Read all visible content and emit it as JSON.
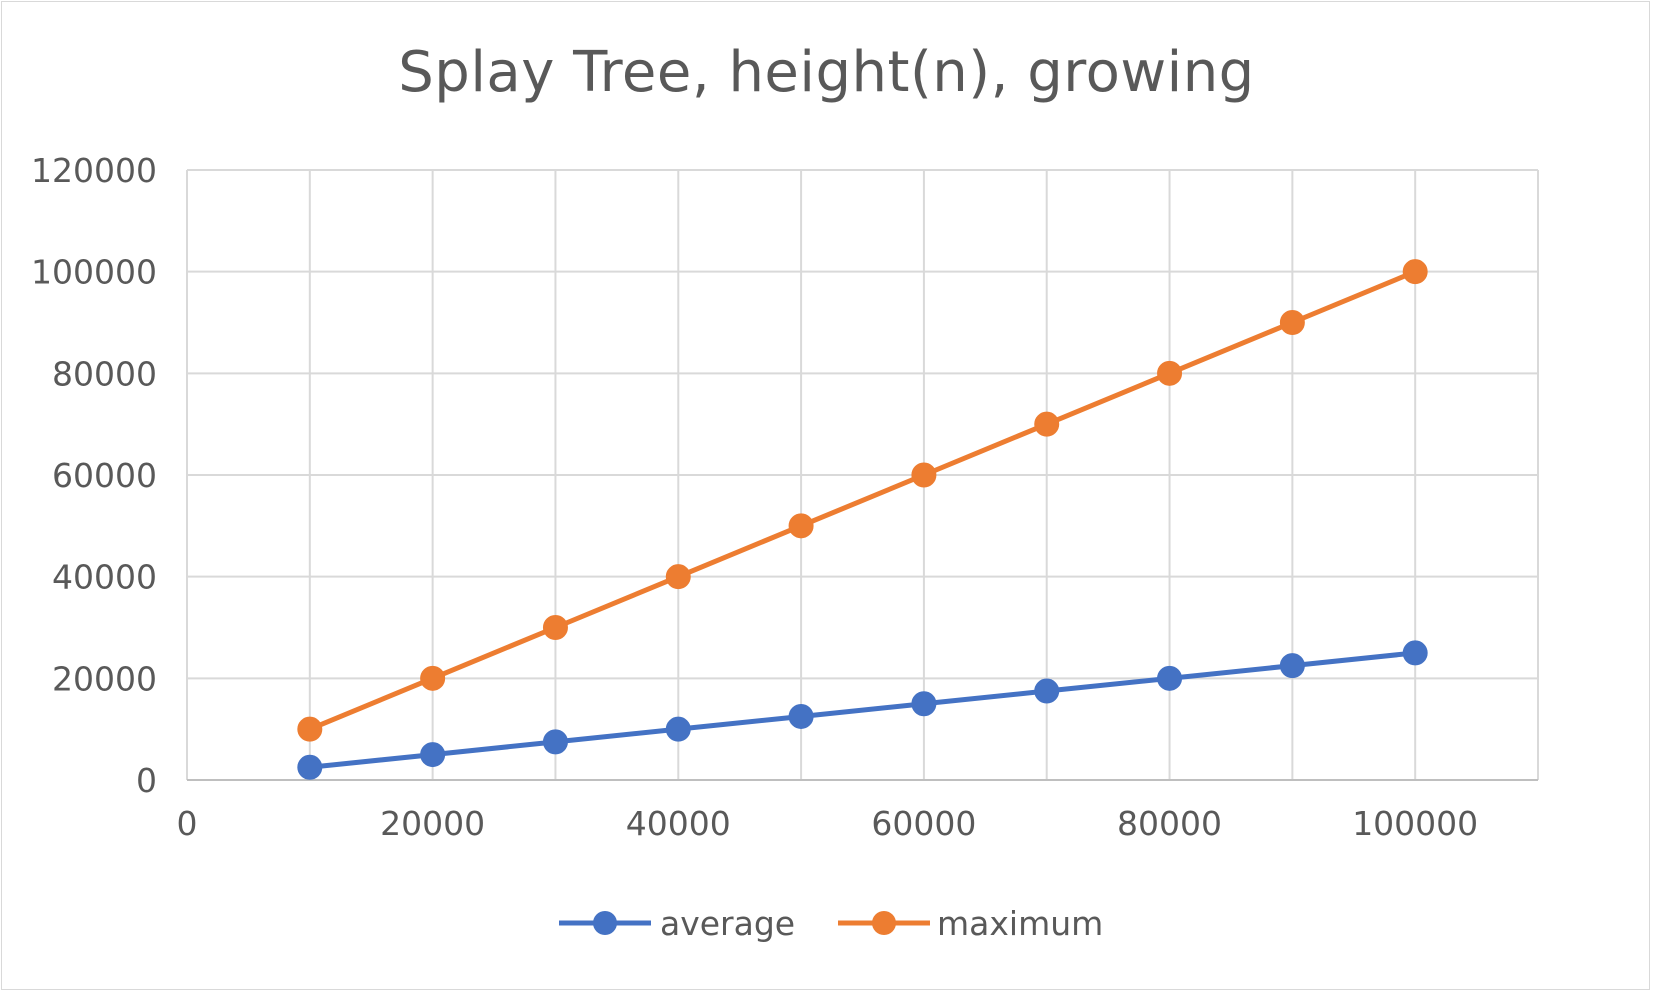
{
  "chart_data": {
    "type": "line",
    "title": "Splay Tree, height(n), growing",
    "xlabel": "",
    "ylabel": "",
    "xlim": [
      0,
      110000
    ],
    "ylim": [
      0,
      120000
    ],
    "x_ticks": [
      0,
      20000,
      40000,
      60000,
      80000,
      100000
    ],
    "y_ticks": [
      0,
      20000,
      40000,
      60000,
      80000,
      100000,
      120000
    ],
    "x_grid_step": 10000,
    "grid": true,
    "legend_position": "bottom",
    "x": [
      10000,
      20000,
      30000,
      40000,
      50000,
      60000,
      70000,
      80000,
      90000,
      100000
    ],
    "series": [
      {
        "name": "average",
        "color": "#4472c4",
        "values": [
          2500,
          5000,
          7500,
          10000,
          12500,
          15000,
          17500,
          20000,
          22500,
          25000
        ]
      },
      {
        "name": "maximum",
        "color": "#ed7d31",
        "values": [
          10000,
          20000,
          30000,
          40000,
          50000,
          60000,
          70000,
          80000,
          90000,
          100000
        ]
      }
    ]
  }
}
